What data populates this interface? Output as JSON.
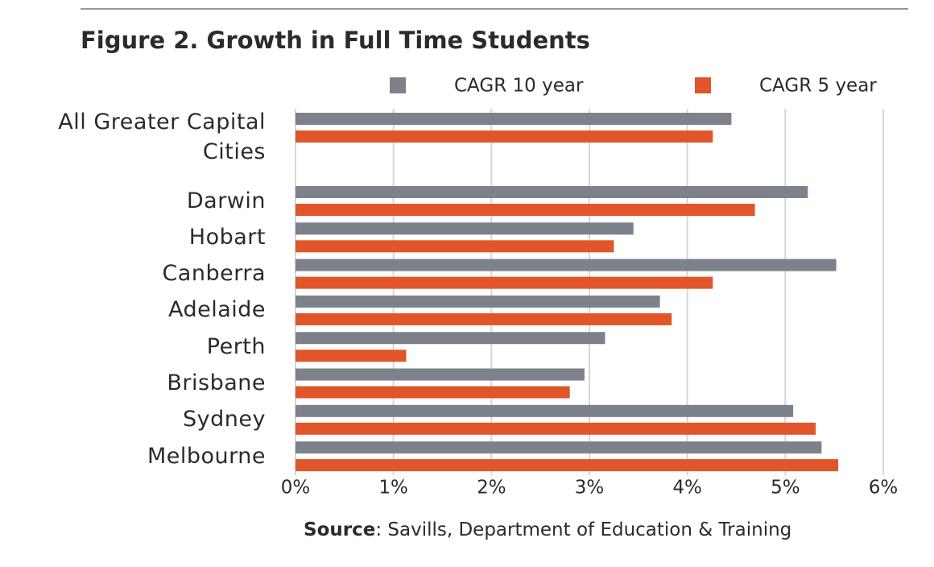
{
  "chart_data": {
    "type": "hbar",
    "title": "Figure 2. Growth in Full Time Students",
    "categories": [
      "All Greater Capital Cities",
      "Darwin",
      "Hobart",
      "Canberra",
      "Adelaide",
      "Perth",
      "Brisbane",
      "Sydney",
      "Melbourne"
    ],
    "series": [
      {
        "name": "CAGR 10 year",
        "color": "#7d818a",
        "values": [
          4.45,
          5.23,
          3.45,
          5.52,
          3.72,
          3.16,
          2.95,
          5.08,
          5.37
        ]
      },
      {
        "name": "CAGR 5 year",
        "color": "#e0562a",
        "values": [
          4.26,
          4.69,
          3.25,
          4.26,
          3.84,
          1.13,
          2.8,
          5.31,
          5.54
        ]
      }
    ],
    "xlim": [
      0,
      6
    ],
    "xticks": [
      {
        "value": 0,
        "label": "0%"
      },
      {
        "value": 1,
        "label": "1%"
      },
      {
        "value": 2,
        "label": "2%"
      },
      {
        "value": 3,
        "label": "3%"
      },
      {
        "value": 4,
        "label": "4%"
      },
      {
        "value": 5,
        "label": "5%"
      },
      {
        "value": 6,
        "label": "6%"
      }
    ],
    "grid": true,
    "legend": "top",
    "source_label": "Source",
    "source_text": ": Savills, Department of Education & Training"
  }
}
